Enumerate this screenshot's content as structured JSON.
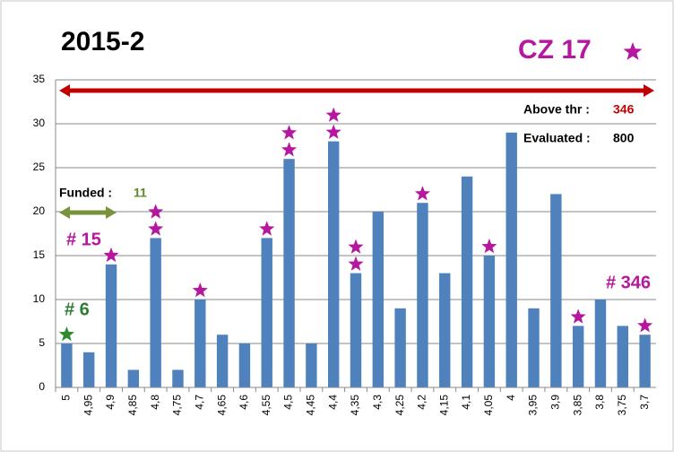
{
  "chart_data": {
    "type": "bar",
    "title": "2015-2",
    "categories": [
      "5",
      "4,95",
      "4,9",
      "4,85",
      "4,8",
      "4,75",
      "4,7",
      "4,65",
      "4,6",
      "4,55",
      "4,5",
      "4,45",
      "4,4",
      "4,35",
      "4,3",
      "4,25",
      "4,2",
      "4,15",
      "4,1",
      "4,05",
      "4",
      "3,95",
      "3,9",
      "3,85",
      "3,8",
      "3,75",
      "3,7"
    ],
    "values": [
      5,
      4,
      14,
      2,
      17,
      2,
      10,
      6,
      5,
      17,
      26,
      5,
      28,
      13,
      20,
      9,
      21,
      13,
      24,
      15,
      29,
      9,
      22,
      7,
      10,
      7,
      6
    ],
    "color": "#4f81bd",
    "stars": [
      1,
      0,
      1,
      0,
      2,
      0,
      1,
      0,
      0,
      1,
      2,
      0,
      2,
      2,
      0,
      0,
      1,
      0,
      0,
      1,
      0,
      0,
      0,
      1,
      0,
      0,
      1
    ],
    "star_colors": [
      "#2e8b2e",
      null,
      "#b5179e",
      null,
      "#b5179e",
      null,
      "#b5179e",
      null,
      null,
      "#b5179e",
      "#b5179e",
      null,
      "#b5179e",
      "#b5179e",
      null,
      null,
      "#b5179e",
      null,
      null,
      "#b5179e",
      null,
      null,
      null,
      "#b5179e",
      null,
      null,
      "#b5179e"
    ],
    "ylim": [
      0,
      35
    ],
    "yticks": [
      0,
      5,
      10,
      15,
      20,
      25,
      30,
      35
    ],
    "grid": true,
    "annotations": [
      {
        "text": "CZ  17",
        "color": "#b5179e"
      },
      {
        "text": "Above thr :",
        "color": "#000000"
      },
      {
        "text": "346",
        "color": "#c00000"
      },
      {
        "text": "Evaluated :",
        "color": "#000000"
      },
      {
        "text": "800",
        "color": "#000000"
      },
      {
        "text": "Funded :",
        "color": "#000000"
      },
      {
        "text": "11",
        "color": "#5a8a2a"
      },
      {
        "text": "# 15",
        "color": "#b5179e"
      },
      {
        "text": "# 6",
        "color": "#2e7d2e"
      },
      {
        "text": "# 346",
        "color": "#b5179e"
      }
    ]
  }
}
